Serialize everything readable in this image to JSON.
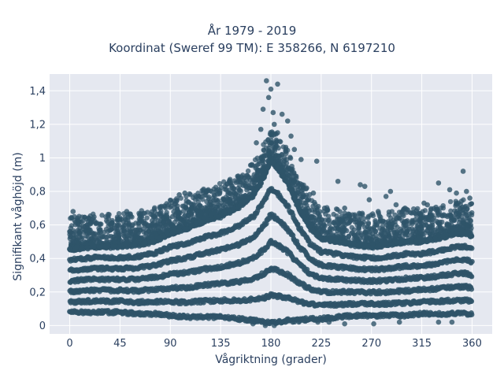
{
  "chart_data": {
    "type": "scatter",
    "title_lines": [
      "År 1979 - 2019",
      "Koordinat (Sweref 99 TM): E 358266, N 6197210"
    ],
    "xlabel": "Vågriktning (grader)",
    "ylabel": "Signifikant våghöjd (m)",
    "xlim": [
      -18,
      378
    ],
    "ylim": [
      -0.05,
      1.5
    ],
    "xticks": [
      0,
      45,
      90,
      135,
      180,
      225,
      270,
      315,
      360
    ],
    "xtick_labels": [
      "0",
      "45",
      "90",
      "135",
      "180",
      "225",
      "270",
      "315",
      "360"
    ],
    "yticks": [
      0,
      0.2,
      0.4,
      0.6,
      0.8,
      1.0,
      1.2,
      1.4
    ],
    "ytick_labels": [
      "0",
      "0,2",
      "0,4",
      "0,6",
      "0,8",
      "1",
      "1,2",
      "1,4"
    ],
    "grid": true,
    "marker_color": "#2f5469",
    "plot_background": "#e5e8f0",
    "density_bands": {
      "direction_deg": [
        0,
        10,
        20,
        30,
        45,
        60,
        75,
        90,
        105,
        120,
        135,
        150,
        165,
        175,
        180,
        185,
        195,
        205,
        215,
        225,
        240,
        255,
        270,
        285,
        300,
        315,
        330,
        345,
        355,
        360
      ],
      "dense_min_m": [
        0.08,
        0.08,
        0.08,
        0.08,
        0.08,
        0.07,
        0.07,
        0.06,
        0.05,
        0.05,
        0.05,
        0.04,
        0.03,
        0.02,
        0.02,
        0.02,
        0.03,
        0.03,
        0.04,
        0.04,
        0.05,
        0.06,
        0.06,
        0.06,
        0.06,
        0.07,
        0.07,
        0.07,
        0.07,
        0.07
      ],
      "dense_max_m": [
        0.45,
        0.46,
        0.47,
        0.47,
        0.47,
        0.48,
        0.5,
        0.55,
        0.58,
        0.62,
        0.65,
        0.7,
        0.78,
        0.9,
        0.98,
        0.95,
        0.85,
        0.7,
        0.58,
        0.52,
        0.5,
        0.48,
        0.47,
        0.48,
        0.5,
        0.5,
        0.52,
        0.55,
        0.55,
        0.53
      ]
    },
    "outliers": [
      {
        "x": 176,
        "y": 1.46
      },
      {
        "x": 180,
        "y": 1.41
      },
      {
        "x": 186,
        "y": 1.44
      },
      {
        "x": 178,
        "y": 1.36
      },
      {
        "x": 173,
        "y": 1.29
      },
      {
        "x": 182,
        "y": 1.27
      },
      {
        "x": 190,
        "y": 1.26
      },
      {
        "x": 195,
        "y": 1.22
      },
      {
        "x": 183,
        "y": 1.2
      },
      {
        "x": 171,
        "y": 1.17
      },
      {
        "x": 186,
        "y": 1.15
      },
      {
        "x": 198,
        "y": 1.13
      },
      {
        "x": 167,
        "y": 1.09
      },
      {
        "x": 201,
        "y": 1.05
      },
      {
        "x": 207,
        "y": 0.99
      },
      {
        "x": 221,
        "y": 0.98
      },
      {
        "x": 156,
        "y": 0.88
      },
      {
        "x": 144,
        "y": 0.85
      },
      {
        "x": 139,
        "y": 0.83
      },
      {
        "x": 103,
        "y": 0.79
      },
      {
        "x": 98,
        "y": 0.78
      },
      {
        "x": 116,
        "y": 0.77
      },
      {
        "x": 131,
        "y": 0.75
      },
      {
        "x": 212,
        "y": 0.82
      },
      {
        "x": 218,
        "y": 0.79
      },
      {
        "x": 228,
        "y": 0.7
      },
      {
        "x": 240,
        "y": 0.86
      },
      {
        "x": 260,
        "y": 0.84
      },
      {
        "x": 264,
        "y": 0.83
      },
      {
        "x": 268,
        "y": 0.75
      },
      {
        "x": 287,
        "y": 0.8
      },
      {
        "x": 283,
        "y": 0.77
      },
      {
        "x": 292,
        "y": 0.72
      },
      {
        "x": 300,
        "y": 0.7
      },
      {
        "x": 317,
        "y": 0.73
      },
      {
        "x": 320,
        "y": 0.72
      },
      {
        "x": 330,
        "y": 0.85
      },
      {
        "x": 340,
        "y": 0.81
      },
      {
        "x": 346,
        "y": 0.79
      },
      {
        "x": 352,
        "y": 0.92
      },
      {
        "x": 355,
        "y": 0.8
      },
      {
        "x": 358,
        "y": 0.76
      },
      {
        "x": 3,
        "y": 0.68
      },
      {
        "x": 7,
        "y": 0.64
      },
      {
        "x": 12,
        "y": 0.59
      },
      {
        "x": 0,
        "y": 0.56
      },
      {
        "x": 23,
        "y": 0.52
      },
      {
        "x": 40,
        "y": 0.58
      },
      {
        "x": 44,
        "y": 0.6
      },
      {
        "x": 51,
        "y": 0.68
      },
      {
        "x": 59,
        "y": 0.57
      },
      {
        "x": 67,
        "y": 0.6
      },
      {
        "x": 81,
        "y": 0.67
      },
      {
        "x": 88,
        "y": 0.62
      },
      {
        "x": 92,
        "y": 0.65
      },
      {
        "x": 109,
        "y": 0.66
      },
      {
        "x": 246,
        "y": 0.7
      },
      {
        "x": 255,
        "y": 0.66
      },
      {
        "x": 276,
        "y": 0.68
      },
      {
        "x": 309,
        "y": 0.63
      },
      {
        "x": 338,
        "y": 0.65
      },
      {
        "x": 250,
        "y": 0.64
      },
      {
        "x": 272,
        "y": 0.01
      },
      {
        "x": 295,
        "y": 0.02
      },
      {
        "x": 246,
        "y": 0.01
      },
      {
        "x": 175,
        "y": 0.0
      },
      {
        "x": 183,
        "y": 0.0
      },
      {
        "x": 164,
        "y": 0.01
      },
      {
        "x": 232,
        "y": 0.02
      },
      {
        "x": 222,
        "y": 0.02
      },
      {
        "x": 330,
        "y": 0.02
      },
      {
        "x": 342,
        "y": 0.02
      }
    ]
  }
}
